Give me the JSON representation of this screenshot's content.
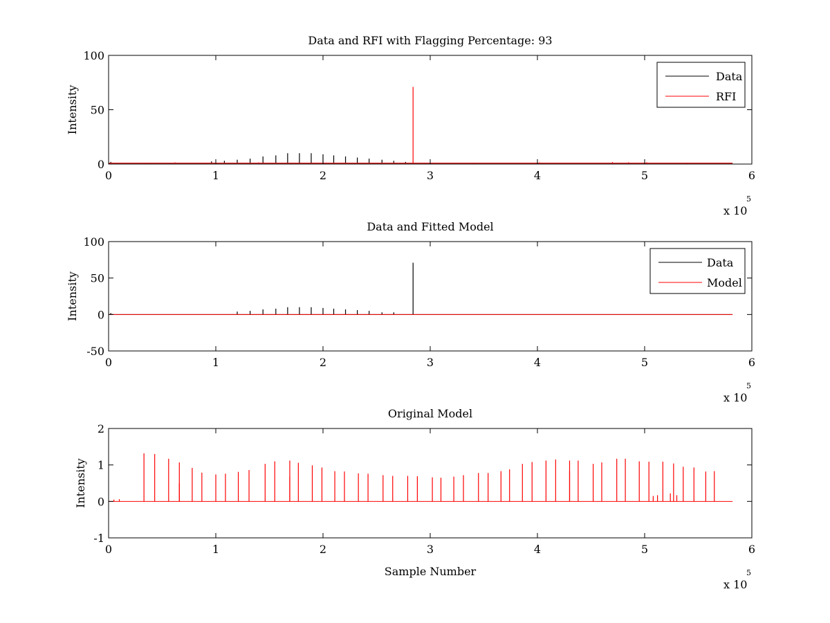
{
  "chart_data": [
    {
      "type": "line",
      "title": "Data and RFI with Flagging Percentage: 93",
      "xlabel": "",
      "ylabel": "Intensity",
      "xlim": [
        0,
        6
      ],
      "ylim": [
        0,
        100
      ],
      "xticks": [
        "0",
        "1",
        "2",
        "3",
        "4",
        "5",
        "6"
      ],
      "yticks": [
        "0",
        "50",
        "100"
      ],
      "x_exponent": {
        "base": "x 10",
        "power": "5"
      },
      "grid": false,
      "legend_position": "top-right",
      "series": [
        {
          "name": "Data",
          "color": "#000000",
          "baseline": 0.8,
          "spikes": [
            {
              "x": 0.02,
              "y": 2
            },
            {
              "x": 0.96,
              "y": 2.5
            },
            {
              "x": 1.08,
              "y": 3
            },
            {
              "x": 1.2,
              "y": 4
            },
            {
              "x": 1.32,
              "y": 5
            },
            {
              "x": 1.44,
              "y": 7
            },
            {
              "x": 1.56,
              "y": 8
            },
            {
              "x": 1.67,
              "y": 10
            },
            {
              "x": 1.78,
              "y": 10
            },
            {
              "x": 1.89,
              "y": 10
            },
            {
              "x": 2.0,
              "y": 9
            },
            {
              "x": 2.1,
              "y": 8
            },
            {
              "x": 2.21,
              "y": 7
            },
            {
              "x": 2.32,
              "y": 6
            },
            {
              "x": 2.43,
              "y": 5
            },
            {
              "x": 2.55,
              "y": 4
            },
            {
              "x": 2.66,
              "y": 3
            },
            {
              "x": 2.77,
              "y": 2
            }
          ]
        },
        {
          "name": "RFI",
          "color": "#ff0000",
          "baseline": 0.8,
          "spikes": [
            {
              "x": 0.35,
              "y": 1.2
            },
            {
              "x": 0.62,
              "y": 1.5
            },
            {
              "x": 0.91,
              "y": 1.2
            },
            {
              "x": 1.4,
              "y": 1.5
            },
            {
              "x": 2.84,
              "y": 71
            },
            {
              "x": 3.4,
              "y": 1.2
            },
            {
              "x": 4.02,
              "y": 1.5
            },
            {
              "x": 4.7,
              "y": 1.8
            },
            {
              "x": 4.85,
              "y": 1.6
            },
            {
              "x": 5.02,
              "y": 1.6
            },
            {
              "x": 5.4,
              "y": 1.2
            }
          ]
        }
      ]
    },
    {
      "type": "line",
      "title": "Data and Fitted Model",
      "xlabel": "",
      "ylabel": "Intensity",
      "xlim": [
        0,
        6
      ],
      "ylim": [
        -50,
        100
      ],
      "xticks": [
        "0",
        "1",
        "2",
        "3",
        "4",
        "5",
        "6"
      ],
      "yticks": [
        "-50",
        "0",
        "50",
        "100"
      ],
      "x_exponent": {
        "base": "x 10",
        "power": "5"
      },
      "grid": false,
      "legend_position": "top-right",
      "series": [
        {
          "name": "Data",
          "color": "#000000",
          "baseline": 0,
          "spikes": [
            {
              "x": 0.02,
              "y": 2
            },
            {
              "x": 1.2,
              "y": 4
            },
            {
              "x": 1.32,
              "y": 5
            },
            {
              "x": 1.44,
              "y": 7
            },
            {
              "x": 1.56,
              "y": 8
            },
            {
              "x": 1.67,
              "y": 10
            },
            {
              "x": 1.78,
              "y": 10
            },
            {
              "x": 1.89,
              "y": 10
            },
            {
              "x": 2.0,
              "y": 9
            },
            {
              "x": 2.1,
              "y": 8
            },
            {
              "x": 2.21,
              "y": 7
            },
            {
              "x": 2.32,
              "y": 6
            },
            {
              "x": 2.43,
              "y": 5
            },
            {
              "x": 2.55,
              "y": 3
            },
            {
              "x": 2.66,
              "y": 3
            },
            {
              "x": 2.84,
              "y": 71
            }
          ]
        },
        {
          "name": "Model",
          "color": "#ff0000",
          "baseline": 0,
          "spikes": []
        }
      ]
    },
    {
      "type": "line",
      "title": "Original Model",
      "xlabel": "Sample Number",
      "ylabel": "Intensity",
      "xlim": [
        0,
        6
      ],
      "ylim": [
        -1,
        2
      ],
      "xticks": [
        "0",
        "1",
        "2",
        "3",
        "4",
        "5",
        "6"
      ],
      "yticks": [
        "-1",
        "0",
        "1",
        "2"
      ],
      "x_exponent": {
        "base": "x 10",
        "power": "5"
      },
      "grid": false,
      "legend_position": "none",
      "series": [
        {
          "color": "#ff0000",
          "baseline": 0,
          "spikes": [
            {
              "x": 0.05,
              "y": 0.05
            },
            {
              "x": 0.1,
              "y": 0.06
            },
            {
              "x": 0.33,
              "y": 1.32
            },
            {
              "x": 0.43,
              "y": 1.3
            },
            {
              "x": 0.56,
              "y": 1.17
            },
            {
              "x": 0.66,
              "y": 1.07
            },
            {
              "x": 0.66,
              "y": 0.5
            },
            {
              "x": 0.78,
              "y": 0.92
            },
            {
              "x": 0.87,
              "y": 0.79
            },
            {
              "x": 1.0,
              "y": 0.74
            },
            {
              "x": 1.09,
              "y": 0.76
            },
            {
              "x": 1.21,
              "y": 0.81
            },
            {
              "x": 1.31,
              "y": 0.86
            },
            {
              "x": 1.46,
              "y": 1.03
            },
            {
              "x": 1.55,
              "y": 1.1
            },
            {
              "x": 1.69,
              "y": 1.12
            },
            {
              "x": 1.69,
              "y": 0.68
            },
            {
              "x": 1.77,
              "y": 1.06
            },
            {
              "x": 1.9,
              "y": 0.99
            },
            {
              "x": 1.99,
              "y": 0.93
            },
            {
              "x": 2.11,
              "y": 0.83
            },
            {
              "x": 2.2,
              "y": 0.82
            },
            {
              "x": 2.33,
              "y": 0.77
            },
            {
              "x": 2.42,
              "y": 0.76
            },
            {
              "x": 2.56,
              "y": 0.72
            },
            {
              "x": 2.65,
              "y": 0.7
            },
            {
              "x": 2.79,
              "y": 0.7
            },
            {
              "x": 2.88,
              "y": 0.69
            },
            {
              "x": 3.02,
              "y": 0.66
            },
            {
              "x": 3.1,
              "y": 0.65
            },
            {
              "x": 3.22,
              "y": 0.68
            },
            {
              "x": 3.31,
              "y": 0.72
            },
            {
              "x": 3.45,
              "y": 0.78
            },
            {
              "x": 3.54,
              "y": 0.78
            },
            {
              "x": 3.66,
              "y": 0.83
            },
            {
              "x": 3.74,
              "y": 0.88
            },
            {
              "x": 3.86,
              "y": 1.03
            },
            {
              "x": 3.95,
              "y": 1.08
            },
            {
              "x": 4.08,
              "y": 1.12
            },
            {
              "x": 4.17,
              "y": 1.15
            },
            {
              "x": 4.3,
              "y": 1.12
            },
            {
              "x": 4.3,
              "y": 0.83
            },
            {
              "x": 4.38,
              "y": 1.12
            },
            {
              "x": 4.52,
              "y": 1.03
            },
            {
              "x": 4.6,
              "y": 1.07
            },
            {
              "x": 4.74,
              "y": 1.17
            },
            {
              "x": 4.82,
              "y": 1.17
            },
            {
              "x": 4.95,
              "y": 1.1
            },
            {
              "x": 5.04,
              "y": 1.09
            },
            {
              "x": 5.08,
              "y": 0.15
            },
            {
              "x": 5.12,
              "y": 0.17
            },
            {
              "x": 5.17,
              "y": 1.09
            },
            {
              "x": 5.24,
              "y": 0.22
            },
            {
              "x": 5.27,
              "y": 1.04
            },
            {
              "x": 5.3,
              "y": 0.17
            },
            {
              "x": 5.36,
              "y": 0.95
            },
            {
              "x": 5.46,
              "y": 0.93
            },
            {
              "x": 5.57,
              "y": 0.82
            },
            {
              "x": 5.65,
              "y": 0.83
            }
          ]
        }
      ]
    }
  ]
}
